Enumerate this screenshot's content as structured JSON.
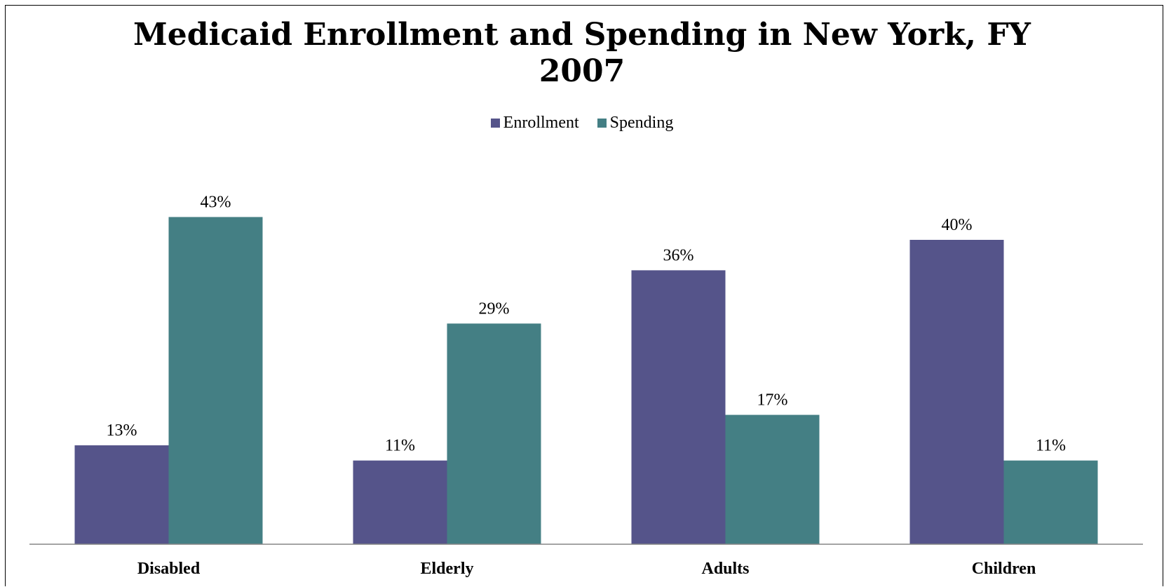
{
  "chart_data": {
    "type": "bar",
    "title_lines": [
      "Medicaid Enrollment and Spending in New York, FY",
      "2007"
    ],
    "categories": [
      "Disabled",
      "Elderly",
      "Adults",
      "Children"
    ],
    "series": [
      {
        "name": "Enrollment",
        "values": [
          13,
          11,
          36,
          40
        ],
        "labels": [
          "13%",
          "11%",
          "36%",
          "40%"
        ],
        "color": "#55548A"
      },
      {
        "name": "Spending",
        "values": [
          43,
          29,
          17,
          11
        ],
        "labels": [
          "43%",
          "29%",
          "17%",
          "11%"
        ],
        "color": "#447F84"
      }
    ],
    "ylim": [
      0,
      45
    ],
    "xlabel": "",
    "ylabel": "",
    "grid": false,
    "legend": "top-center",
    "axis_color": "#868686"
  }
}
